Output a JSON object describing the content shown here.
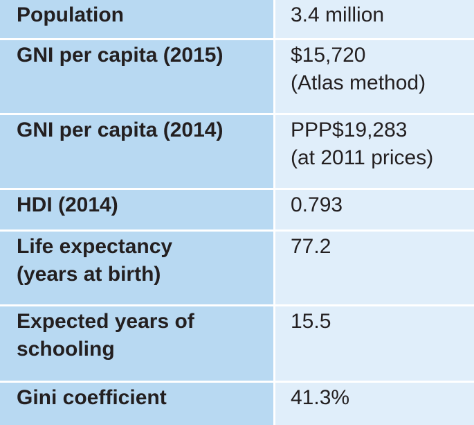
{
  "table": {
    "rows": [
      {
        "label": [
          "Population"
        ],
        "value": [
          "3.4 million"
        ]
      },
      {
        "label": [
          "GNI per capita (2015)"
        ],
        "value": [
          "$15,720",
          "(Atlas method)"
        ]
      },
      {
        "label": [
          "GNI per capita (2014)"
        ],
        "value": [
          "PPP$19,283",
          "(at 2011 prices)"
        ]
      },
      {
        "label": [
          "HDI (2014)"
        ],
        "value": [
          "0.793"
        ]
      },
      {
        "label": [
          "Life expectancy",
          "(years at birth)"
        ],
        "value": [
          "77.2"
        ]
      },
      {
        "label": [
          "Expected years of",
          "schooling"
        ],
        "value": [
          "15.5"
        ]
      },
      {
        "label": [
          "Gini coefficient"
        ],
        "value": [
          "41.3%"
        ]
      }
    ]
  },
  "colors": {
    "label_bg": "#b8d9f2",
    "value_bg": "#e0eefa",
    "separator": "#ffffff",
    "text": "#231f20"
  }
}
